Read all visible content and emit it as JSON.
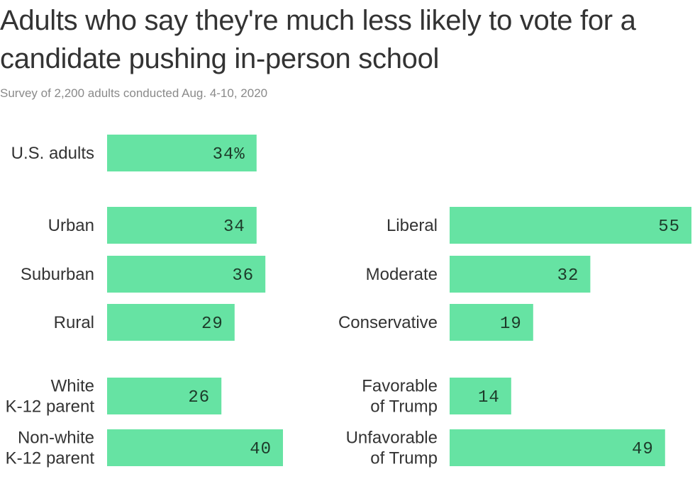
{
  "title": "Adults who say they're much less likely to vote for a candidate pushing in-person school",
  "subtitle": "Survey of 2,200 adults conducted Aug. 4-10, 2020",
  "bar_color": "#66e3a3",
  "chart_data": {
    "type": "bar",
    "orientation": "horizontal",
    "xlim": [
      0,
      55
    ],
    "groups": [
      {
        "categories": [
          [
            "U.S. adults"
          ]
        ],
        "values": [
          34
        ],
        "value_labels": [
          "34%"
        ]
      },
      {
        "categories": [
          [
            "Urban"
          ],
          [
            "Suburban"
          ],
          [
            "Rural"
          ]
        ],
        "values": [
          34,
          36,
          29
        ],
        "value_labels": [
          "34",
          "36",
          "29"
        ]
      },
      {
        "categories": [
          [
            "White",
            "K-12 parent"
          ],
          [
            "Non-white",
            "K-12 parent"
          ]
        ],
        "values": [
          26,
          40
        ],
        "value_labels": [
          "26",
          "40"
        ]
      },
      {
        "categories": [
          [
            "Liberal"
          ],
          [
            "Moderate"
          ],
          [
            "Conservative"
          ]
        ],
        "values": [
          55,
          32,
          19
        ],
        "value_labels": [
          "55",
          "32",
          "19"
        ]
      },
      {
        "categories": [
          [
            "Favorable",
            "of Trump"
          ],
          [
            "Unfavorable",
            "of Trump"
          ]
        ],
        "values": [
          14,
          49
        ],
        "value_labels": [
          "14",
          "49"
        ]
      }
    ]
  }
}
